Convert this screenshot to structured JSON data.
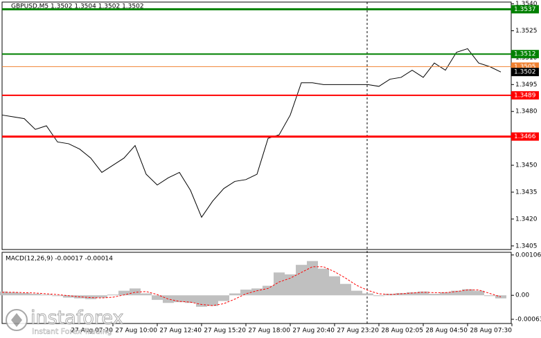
{
  "chart_data": [
    {
      "type": "line",
      "title": "GBPUSD,M5  1.3502 1.3504 1.3502 1.3502",
      "color": "#000000",
      "categories": [
        null,
        null,
        null,
        null,
        null,
        null,
        null,
        null,
        null,
        null,
        "27 Aug 07:20",
        null,
        null,
        null,
        "27 Aug 10:00",
        null,
        null,
        null,
        "27 Aug 12:40",
        null,
        null,
        null,
        "27 Aug 15:20",
        null,
        null,
        null,
        "27 Aug 18:00",
        null,
        null,
        null,
        "27 Aug 20:40",
        null,
        null,
        null,
        "27 Aug 23:20",
        null,
        null,
        null,
        "28 Aug 02:05",
        null,
        null,
        null,
        "28 Aug 04:50",
        null,
        null,
        null,
        "28 Aug 07:30"
      ],
      "values": [
        1.3478,
        1.3477,
        1.3476,
        1.347,
        1.3472,
        1.3463,
        1.3462,
        1.3459,
        1.3454,
        1.3446,
        1.345,
        1.3454,
        1.3461,
        1.3445,
        1.3439,
        1.3443,
        1.3446,
        1.3436,
        1.3421,
        1.343,
        1.3437,
        1.3441,
        1.3442,
        1.3445,
        1.3465,
        1.3467,
        1.3478,
        1.3496,
        1.3496,
        1.3495,
        1.3495,
        1.3495,
        1.3495,
        1.3495,
        1.3494,
        1.3498,
        1.3499,
        1.3503,
        1.3499,
        1.3507,
        1.3503,
        1.3513,
        1.3515,
        1.3507,
        1.3505,
        1.3502,
        null
      ],
      "ylim": [
        1.3403,
        1.3541
      ],
      "yticks": [
        {
          "value": 1.354,
          "label": "1.3540"
        },
        1.3525,
        {
          "value": 1.351,
          "label": "1.3510"
        },
        1.3495,
        {
          "value": 1.348,
          "label": "1.3480"
        },
        1.3465,
        {
          "value": 1.345,
          "label": "1.3450"
        },
        1.3435,
        {
          "value": 1.342,
          "label": "1.3420"
        },
        1.3405
      ],
      "levels": [
        {
          "value": 1.3537,
          "color": "#008000"
        },
        {
          "value": 1.3512,
          "color": "#008000"
        },
        {
          "value": 1.3505,
          "color": "#f08030"
        },
        {
          "value": 1.3489,
          "color": "#ff0000"
        },
        {
          "value": 1.3466,
          "color": "#ff0000"
        },
        {
          "value": 1.3502,
          "color": "#000000"
        }
      ]
    },
    {
      "type": "bar",
      "title": "MACD(12,26,9) -0.00017 -0.00014",
      "series": [
        {
          "color": "#c0c0c0",
          "values": [
            0.0001,
            8e-05,
            6e-05,
            4e-05,
            2e-05,
            -2e-05,
            -6e-05,
            -8e-05,
            -0.0001,
            -6e-05,
            2e-05,
            0.00012,
            0.00018,
            5e-05,
            -0.00012,
            -0.0002,
            -0.00018,
            -0.0002,
            -0.0003,
            -0.00028,
            -0.00015,
            5e-05,
            0.00015,
            0.00018,
            0.00025,
            0.0006,
            0.00055,
            0.0008,
            0.0009,
            0.0007,
            0.0005,
            0.0003,
            0.00012,
            5e-05,
            -2e-05,
            4e-05,
            6e-05,
            8e-05,
            0.0001,
            4e-05,
            8e-05,
            0.00012,
            0.00016,
            0.00012,
            -2e-05,
            -8e-05,
            null
          ]
        },
        {
          "color": "#ff0000",
          "values": [
            8e-05,
            8e-05,
            7e-05,
            6e-05,
            4e-05,
            2e-05,
            -1e-05,
            -4e-05,
            -6e-05,
            -7e-05,
            -5e-05,
            1e-05,
            8e-05,
            0.0001,
            2e-05,
            -0.0001,
            -0.00016,
            -0.00018,
            -0.00024,
            -0.00027,
            -0.00022,
            -0.0001,
            4e-05,
            0.00012,
            0.00018,
            0.00035,
            0.00045,
            0.0006,
            0.00075,
            0.00075,
            0.00062,
            0.00045,
            0.00026,
            0.00013,
            4e-05,
            2e-05,
            4e-05,
            6e-05,
            8e-05,
            7e-05,
            7e-05,
            0.0001,
            0.00014,
            0.00014,
            5e-05,
            -4e-05,
            null
          ]
        }
      ],
      "ylim": [
        -0.00074,
        0.00113
      ],
      "yticks": [
        0.00106,
        {
          "value": 0,
          "label": "0.00"
        },
        -0.00063
      ]
    }
  ],
  "watermark": {
    "brand": "instaforex",
    "tagline": "Instant Forex Trading"
  }
}
